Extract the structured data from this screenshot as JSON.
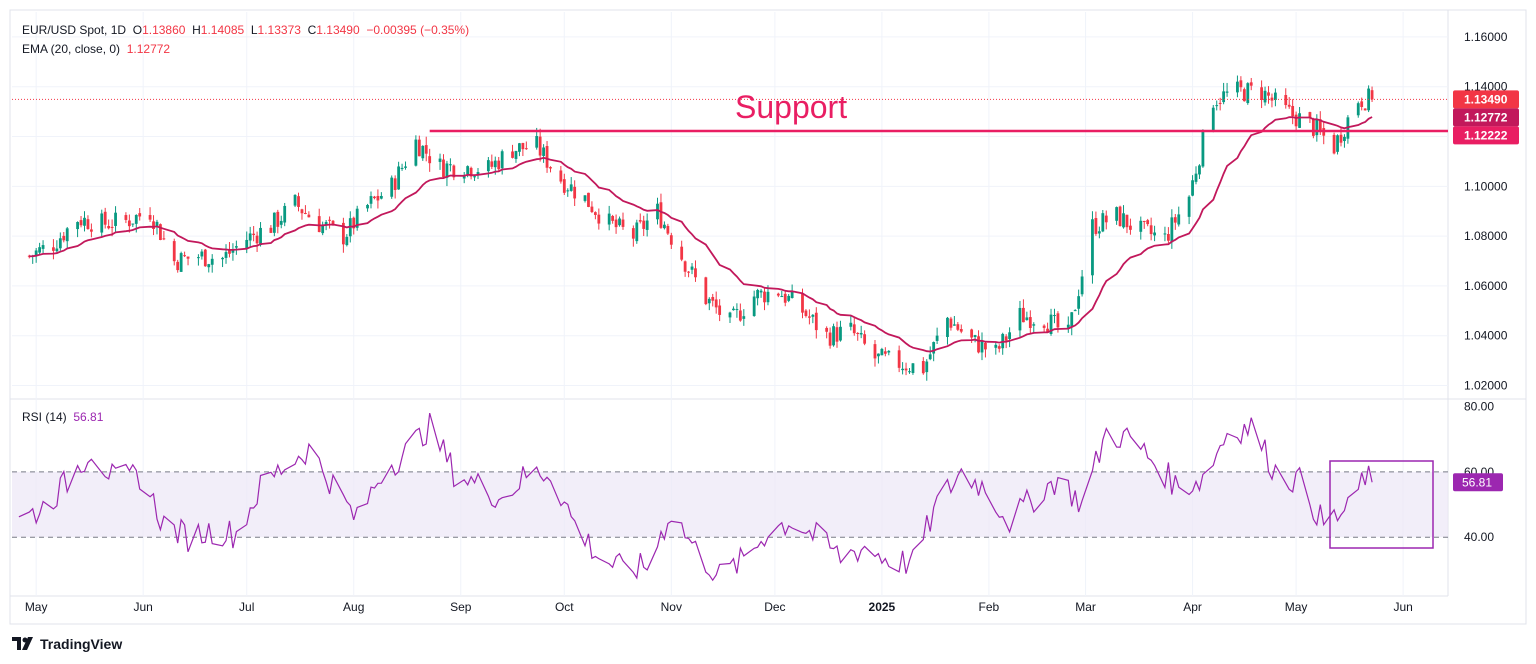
{
  "header": {
    "symbol": "EUR/USD Spot, 1D",
    "open_label": "O",
    "open": "1.13860",
    "high_label": "H",
    "high": "1.14085",
    "low_label": "L",
    "low": "1.13373",
    "close_label": "C",
    "close": "1.13490",
    "change": "−0.00395 (−0.35%)",
    "ema_label": "EMA (20, close, 0)",
    "ema_value": "1.12772",
    "rsi_label": "RSI (14)",
    "rsi_value": "56.81"
  },
  "annotation": {
    "support_text": "Support"
  },
  "brand": {
    "name": "TradingView"
  },
  "colors": {
    "up": "#089981",
    "down": "#f23645",
    "ema": "#c2185b",
    "support": "#e91e63",
    "rsi": "#9c27b0",
    "rsi_band": "#ede7f6"
  },
  "chart_data": [
    {
      "type": "candlestick",
      "title": "EUR/USD Spot, 1D",
      "overlay": "EMA (20, close, 0)",
      "x_tick_labels": [
        "May",
        "Jun",
        "Jul",
        "Aug",
        "Sep",
        "Oct",
        "Nov",
        "Dec",
        "2025",
        "Feb",
        "Mar",
        "Apr",
        "May",
        "Jun"
      ],
      "y_tick_labels": [
        "1.16000",
        "1.14000",
        "1.12000",
        "1.10000",
        "1.08000",
        "1.06000",
        "1.04000",
        "1.02000"
      ],
      "ylim": [
        1.015,
        1.17
      ],
      "price_labels": [
        {
          "name": "last",
          "value": "1.13490"
        },
        {
          "name": "ema",
          "value": "1.12772"
        },
        {
          "name": "support",
          "value": "1.12222"
        }
      ],
      "support_level": 1.1222,
      "close_path": [
        [
          "2024-04-29",
          1.072
        ],
        [
          "2024-05-06",
          1.077
        ],
        [
          "2024-05-13",
          1.087
        ],
        [
          "2024-05-20",
          1.085
        ],
        [
          "2024-05-27",
          1.086
        ],
        [
          "2024-06-03",
          1.09
        ],
        [
          "2024-06-10",
          1.07
        ],
        [
          "2024-06-17",
          1.072
        ],
        [
          "2024-06-24",
          1.071
        ],
        [
          "2024-07-01",
          1.079
        ],
        [
          "2024-07-08",
          1.084
        ],
        [
          "2024-07-15",
          1.093
        ],
        [
          "2024-07-22",
          1.085
        ],
        [
          "2024-07-29",
          1.08
        ],
        [
          "2024-08-05",
          1.092
        ],
        [
          "2024-08-12",
          1.1
        ],
        [
          "2024-08-19",
          1.118
        ],
        [
          "2024-08-26",
          1.108
        ],
        [
          "2024-09-02",
          1.108
        ],
        [
          "2024-09-09",
          1.107
        ],
        [
          "2024-09-16",
          1.115
        ],
        [
          "2024-09-23",
          1.116
        ],
        [
          "2024-09-30",
          1.103
        ],
        [
          "2024-10-07",
          1.095
        ],
        [
          "2024-10-14",
          1.085
        ],
        [
          "2024-10-21",
          1.08
        ],
        [
          "2024-10-28",
          1.09
        ],
        [
          "2024-11-04",
          1.072
        ],
        [
          "2024-11-11",
          1.055
        ],
        [
          "2024-11-18",
          1.045
        ],
        [
          "2024-11-25",
          1.056
        ],
        [
          "2024-12-02",
          1.058
        ],
        [
          "2024-12-09",
          1.05
        ],
        [
          "2024-12-16",
          1.04
        ],
        [
          "2024-12-23",
          1.042
        ],
        [
          "2024-12-30",
          1.031
        ],
        [
          "2025-01-06",
          1.029
        ],
        [
          "2025-01-13",
          1.027
        ],
        [
          "2025-01-20",
          1.047
        ],
        [
          "2025-01-27",
          1.038
        ],
        [
          "2025-02-03",
          1.033
        ],
        [
          "2025-02-10",
          1.048
        ],
        [
          "2025-02-17",
          1.047
        ],
        [
          "2025-02-24",
          1.04
        ],
        [
          "2025-03-03",
          1.084
        ],
        [
          "2025-03-10",
          1.088
        ],
        [
          "2025-03-17",
          1.082
        ],
        [
          "2025-03-24",
          1.079
        ],
        [
          "2025-03-31",
          1.096
        ],
        [
          "2025-04-07",
          1.135
        ],
        [
          "2025-04-14",
          1.138
        ],
        [
          "2025-04-21",
          1.138
        ],
        [
          "2025-04-28",
          1.13
        ],
        [
          "2025-05-05",
          1.125
        ],
        [
          "2025-05-12",
          1.116
        ],
        [
          "2025-05-19",
          1.135
        ],
        [
          "2025-05-23",
          1.1349
        ]
      ]
    },
    {
      "type": "line",
      "title": "RSI (14)",
      "ylim": [
        22,
        82
      ],
      "y_tick_labels": [
        "80.00",
        "60.00",
        "40.00"
      ],
      "band": [
        40,
        60
      ],
      "last_value": "56.81",
      "values": [
        {
          "x": "2024-04-26",
          "y": 45
        },
        {
          "x": "2024-05-03",
          "y": 49
        },
        {
          "x": "2024-05-10",
          "y": 57
        },
        {
          "x": "2024-05-17",
          "y": 67
        },
        {
          "x": "2024-05-24",
          "y": 57
        },
        {
          "x": "2024-05-31",
          "y": 59
        },
        {
          "x": "2024-06-07",
          "y": 44
        },
        {
          "x": "2024-06-14",
          "y": 40
        },
        {
          "x": "2024-06-21",
          "y": 42
        },
        {
          "x": "2024-06-28",
          "y": 41
        },
        {
          "x": "2024-07-05",
          "y": 55
        },
        {
          "x": "2024-07-12",
          "y": 62
        },
        {
          "x": "2024-07-19",
          "y": 67
        },
        {
          "x": "2024-07-26",
          "y": 56
        },
        {
          "x": "2024-08-02",
          "y": 45
        },
        {
          "x": "2024-08-09",
          "y": 60
        },
        {
          "x": "2024-08-16",
          "y": 66
        },
        {
          "x": "2024-08-23",
          "y": 74
        },
        {
          "x": "2024-08-30",
          "y": 60
        },
        {
          "x": "2024-09-06",
          "y": 56
        },
        {
          "x": "2024-09-13",
          "y": 52
        },
        {
          "x": "2024-09-20",
          "y": 59
        },
        {
          "x": "2024-09-27",
          "y": 60
        },
        {
          "x": "2024-10-04",
          "y": 44
        },
        {
          "x": "2024-10-11",
          "y": 34
        },
        {
          "x": "2024-10-18",
          "y": 30
        },
        {
          "x": "2024-10-25",
          "y": 31
        },
        {
          "x": "2024-11-01",
          "y": 48
        },
        {
          "x": "2024-11-08",
          "y": 36
        },
        {
          "x": "2024-11-15",
          "y": 28
        },
        {
          "x": "2024-11-22",
          "y": 33
        },
        {
          "x": "2024-11-29",
          "y": 42
        },
        {
          "x": "2024-12-06",
          "y": 45
        },
        {
          "x": "2024-12-13",
          "y": 40
        },
        {
          "x": "2024-12-20",
          "y": 34
        },
        {
          "x": "2024-12-27",
          "y": 37
        },
        {
          "x": "2025-01-03",
          "y": 33
        },
        {
          "x": "2025-01-10",
          "y": 32
        },
        {
          "x": "2025-01-17",
          "y": 50
        },
        {
          "x": "2025-01-24",
          "y": 60
        },
        {
          "x": "2025-01-31",
          "y": 55
        },
        {
          "x": "2025-02-07",
          "y": 45
        },
        {
          "x": "2025-02-14",
          "y": 52
        },
        {
          "x": "2025-02-21",
          "y": 58
        },
        {
          "x": "2025-02-28",
          "y": 50
        },
        {
          "x": "2025-03-07",
          "y": 72
        },
        {
          "x": "2025-03-14",
          "y": 70
        },
        {
          "x": "2025-03-21",
          "y": 63
        },
        {
          "x": "2025-03-28",
          "y": 55
        },
        {
          "x": "2025-04-04",
          "y": 58
        },
        {
          "x": "2025-04-11",
          "y": 72
        },
        {
          "x": "2025-04-18",
          "y": 74
        },
        {
          "x": "2025-04-25",
          "y": 60
        },
        {
          "x": "2025-05-02",
          "y": 57
        },
        {
          "x": "2025-05-09",
          "y": 44
        },
        {
          "x": "2025-05-16",
          "y": 48
        },
        {
          "x": "2025-05-21",
          "y": 59
        },
        {
          "x": "2025-05-23",
          "y": 56.81
        }
      ]
    }
  ]
}
